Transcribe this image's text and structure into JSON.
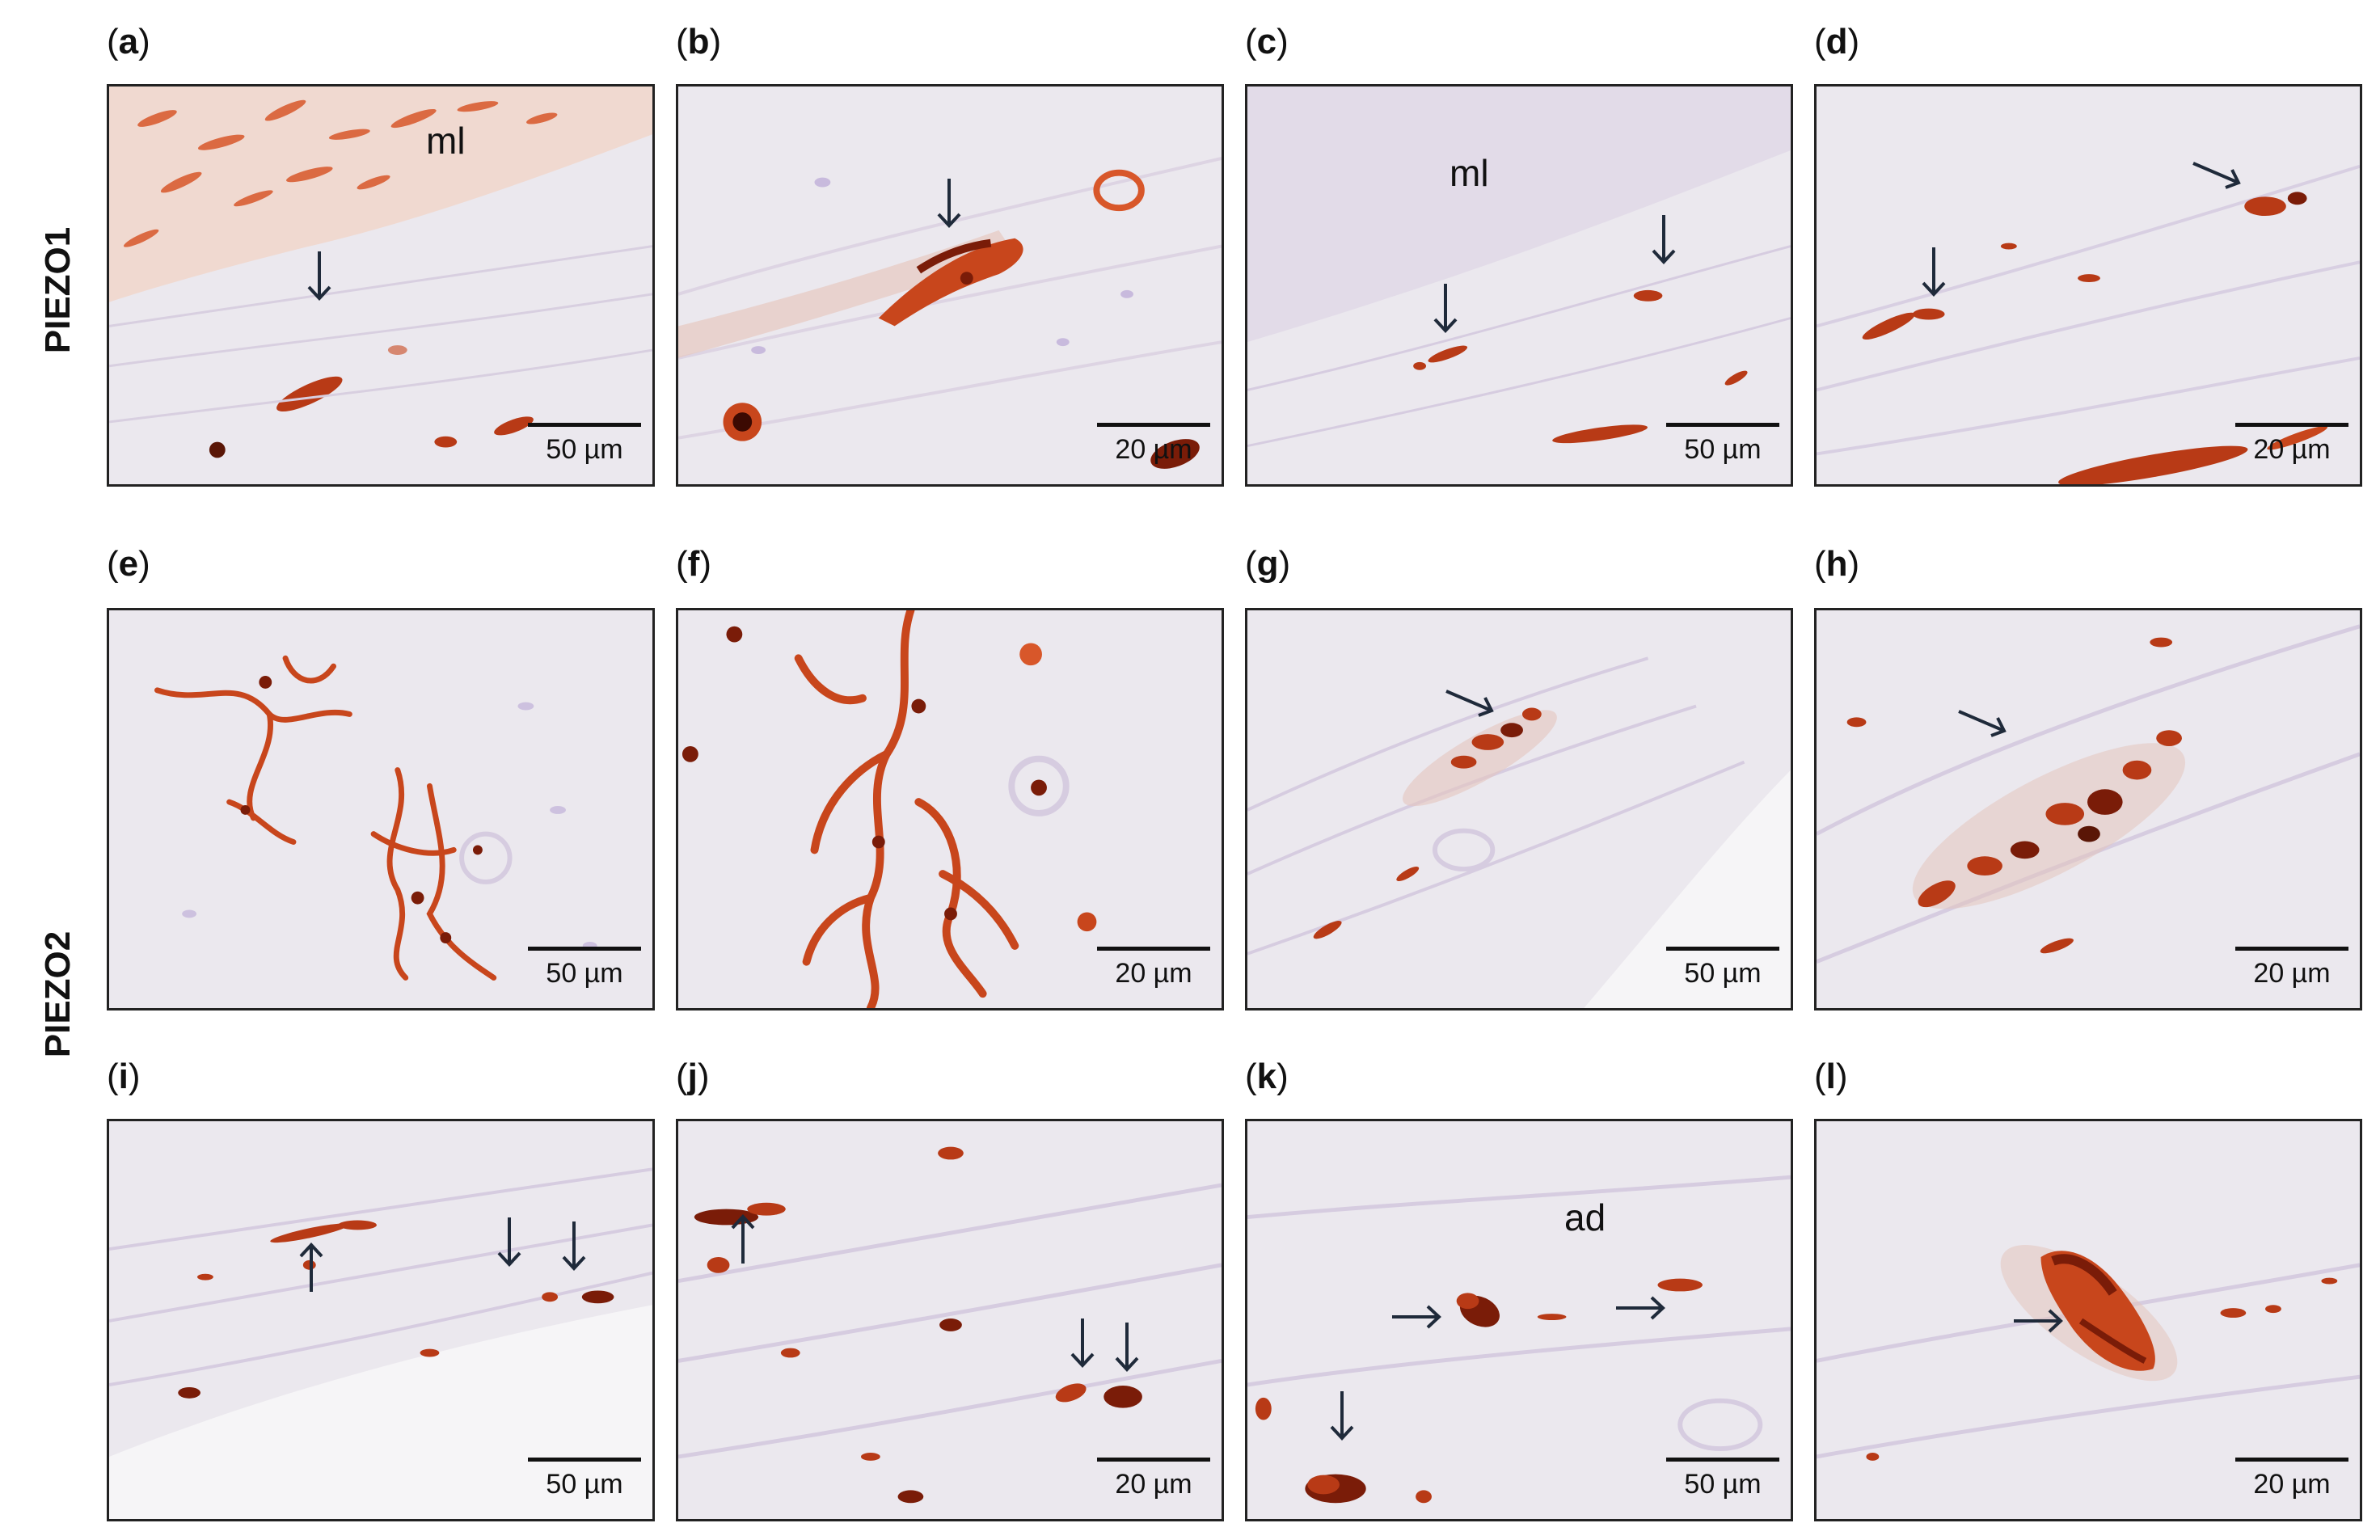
{
  "row_labels": {
    "piezo1": "PIEZO1",
    "piezo2": "PIEZO2"
  },
  "panels": [
    {
      "letter": "a",
      "scale": "50 µm",
      "region": "ml"
    },
    {
      "letter": "b",
      "scale": "20 µm",
      "region": ""
    },
    {
      "letter": "c",
      "scale": "50 µm",
      "region": "ml"
    },
    {
      "letter": "d",
      "scale": "20 µm",
      "region": ""
    },
    {
      "letter": "e",
      "scale": "50 µm",
      "region": ""
    },
    {
      "letter": "f",
      "scale": "20 µm",
      "region": ""
    },
    {
      "letter": "g",
      "scale": "50 µm",
      "region": ""
    },
    {
      "letter": "h",
      "scale": "20 µm",
      "region": ""
    },
    {
      "letter": "i",
      "scale": "50 µm",
      "region": ""
    },
    {
      "letter": "j",
      "scale": "20 µm",
      "region": ""
    },
    {
      "letter": "k",
      "scale": "50 µm",
      "region": "ad"
    },
    {
      "letter": "l",
      "scale": "20 µm",
      "region": ""
    }
  ],
  "colors": {
    "stain": "#c8461c",
    "stain_dark": "#7a1c08",
    "background": "#ebe8ee",
    "counterstain": "#b9a6d6",
    "arrow": "#1f2a3a"
  }
}
